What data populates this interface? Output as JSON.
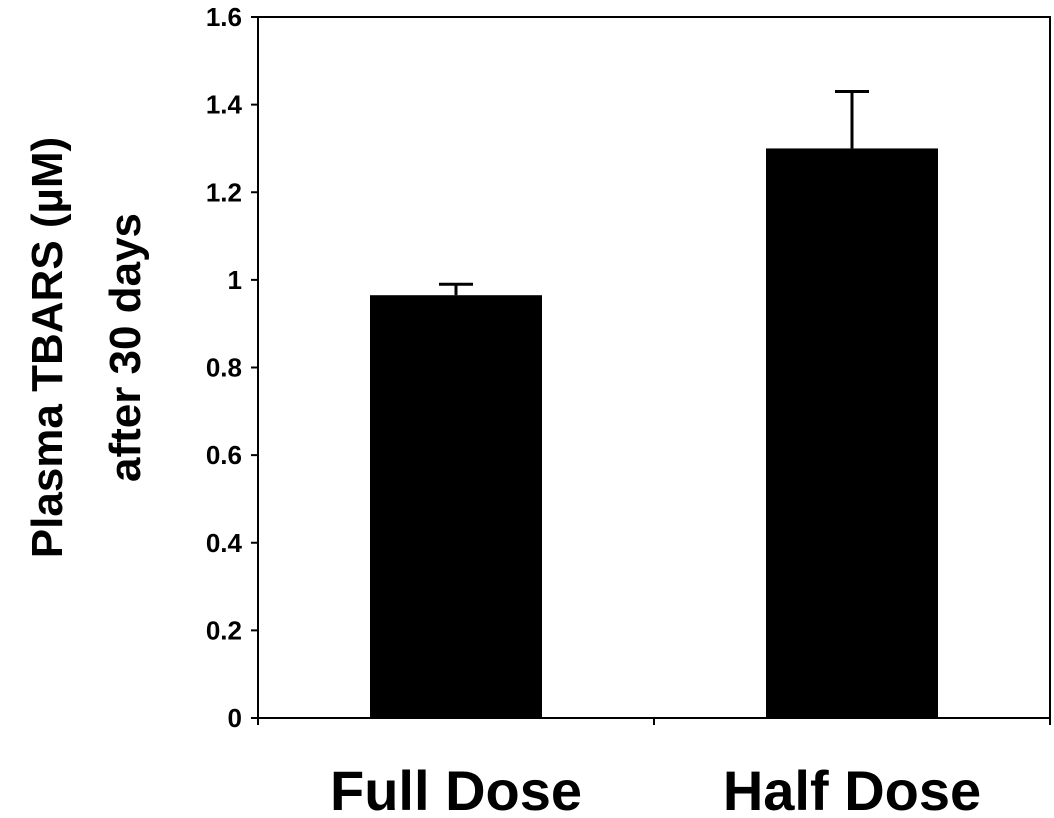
{
  "chart_data": {
    "type": "bar",
    "title": "",
    "xlabel": "",
    "ylabel_lines": [
      "Plasma TBARS (µM)",
      "after 30 days"
    ],
    "categories": [
      "Full Dose",
      "Half Dose"
    ],
    "values": [
      0.965,
      1.3
    ],
    "errors": [
      0.025,
      0.13
    ],
    "ylim": [
      0,
      1.6
    ],
    "yticks": [
      0,
      0.2,
      0.4,
      0.6,
      0.8,
      1,
      1.2,
      1.4,
      1.6
    ],
    "ytick_labels": [
      "0",
      "0.2",
      "0.4",
      "0.6",
      "0.8",
      "1",
      "1.2",
      "1.4",
      "1.6"
    ],
    "grid": false,
    "legend": "none",
    "bar_color": "#000000",
    "axis_color": "#000000"
  }
}
